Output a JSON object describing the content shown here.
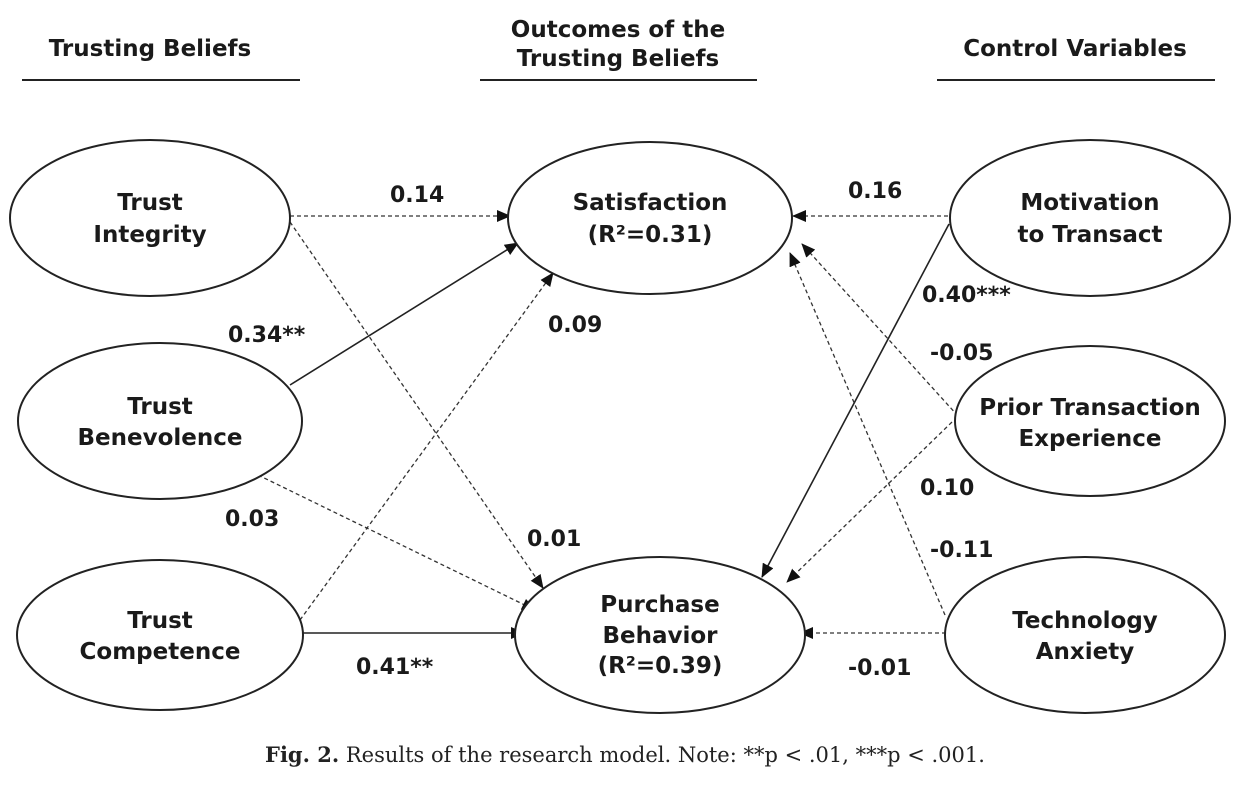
{
  "headers": {
    "trusting_beliefs": "Trusting Beliefs",
    "outcomes_line1": "Outcomes of the",
    "outcomes_line2": "Trusting Beliefs",
    "control_variables": "Control Variables"
  },
  "nodes": {
    "trust_integrity": {
      "line1": "Trust",
      "line2": "Integrity"
    },
    "trust_benevolence": {
      "line1": "Trust",
      "line2": "Benevolence"
    },
    "trust_competence": {
      "line1": "Trust",
      "line2": "Competence"
    },
    "satisfaction": {
      "line1": "Satisfaction",
      "line2": "(R²=0.31)"
    },
    "purchase_behavior": {
      "line1": "Purchase",
      "line2": "Behavior",
      "line3": "(R²=0.39)"
    },
    "motivation": {
      "line1": "Motivation",
      "line2": "to Transact"
    },
    "prior_experience": {
      "line1": "Prior Transaction",
      "line2": "Experience"
    },
    "technology_anxiety": {
      "line1": "Technology",
      "line2": "Anxiety"
    }
  },
  "paths": [
    {
      "from": "trust_integrity",
      "to": "satisfaction",
      "coefficient": "0.14",
      "significant": false
    },
    {
      "from": "trust_integrity",
      "to": "purchase_behavior",
      "coefficient": "0.01",
      "significant": false
    },
    {
      "from": "trust_benevolence",
      "to": "satisfaction",
      "coefficient": "0.34**",
      "significant": true
    },
    {
      "from": "trust_benevolence",
      "to": "purchase_behavior",
      "coefficient": "0.03",
      "significant": false
    },
    {
      "from": "trust_competence",
      "to": "satisfaction",
      "coefficient": "0.09",
      "significant": false
    },
    {
      "from": "trust_competence",
      "to": "purchase_behavior",
      "coefficient": "0.41**",
      "significant": true
    },
    {
      "from": "motivation",
      "to": "satisfaction",
      "coefficient": "0.16",
      "significant": false
    },
    {
      "from": "motivation",
      "to": "purchase_behavior",
      "coefficient": "0.40***",
      "significant": true
    },
    {
      "from": "prior_experience",
      "to": "satisfaction",
      "coefficient": "-0.05",
      "significant": false
    },
    {
      "from": "prior_experience",
      "to": "purchase_behavior",
      "coefficient": "0.10",
      "significant": false
    },
    {
      "from": "technology_anxiety",
      "to": "satisfaction",
      "coefficient": "-0.11",
      "significant": false
    },
    {
      "from": "technology_anxiety",
      "to": "purchase_behavior",
      "coefficient": "-0.01",
      "significant": false
    }
  ],
  "caption": {
    "label": "Fig. 2.",
    "text": "Results of the research model. Note: **p < .01, ***p < .001."
  }
}
